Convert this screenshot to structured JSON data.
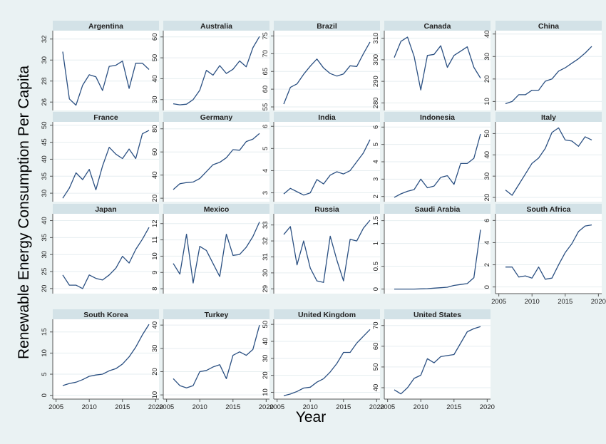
{
  "figure": {
    "ylabel": "Renewable Energy Consumption Per Capita",
    "xlabel": "Year"
  },
  "chart_data": [
    {
      "type": "line",
      "title": "Argentina",
      "x": [
        2006,
        2007,
        2008,
        2009,
        2010,
        2011,
        2012,
        2013,
        2014,
        2015,
        2016,
        2017,
        2018,
        2019
      ],
      "values": [
        30.8,
        26.3,
        25.7,
        27.6,
        28.6,
        28.4,
        27.1,
        29.4,
        29.5,
        29.9,
        27.3,
        29.7,
        29.7,
        29.1
      ],
      "yticks": [
        26,
        28,
        30,
        32
      ],
      "ylim": [
        25.2,
        32.8
      ],
      "xticks": [
        2005,
        2010,
        2015,
        2020
      ],
      "xlim": [
        2004.5,
        2020.5
      ],
      "xlabels": false,
      "ylabels": true
    },
    {
      "type": "line",
      "title": "Australia",
      "x": [
        2006,
        2007,
        2008,
        2009,
        2010,
        2011,
        2012,
        2013,
        2014,
        2015,
        2016,
        2017,
        2018,
        2019
      ],
      "values": [
        28,
        27.5,
        27.8,
        30,
        34.5,
        44,
        41.7,
        46.3,
        42.5,
        44.5,
        48.5,
        45.7,
        54.8,
        60.2
      ],
      "yticks": [
        30,
        40,
        50,
        60
      ],
      "ylim": [
        24.8,
        63
      ],
      "xticks": [
        2005,
        2010,
        2015,
        2020
      ],
      "xlim": [
        2004.5,
        2020.5
      ],
      "xlabels": false,
      "ylabels": true
    },
    {
      "type": "line",
      "title": "Brazil",
      "x": [
        2006,
        2007,
        2008,
        2009,
        2010,
        2011,
        2012,
        2013,
        2014,
        2015,
        2016,
        2017,
        2018,
        2019
      ],
      "values": [
        55.8,
        60.5,
        61.5,
        64.2,
        66.5,
        68.5,
        66,
        64.4,
        63.7,
        64.3,
        66.6,
        66.4,
        70,
        73.3
      ],
      "yticks": [
        55,
        60,
        65,
        70,
        75
      ],
      "ylim": [
        54,
        76.5
      ],
      "xticks": [
        2005,
        2010,
        2015,
        2020
      ],
      "xlim": [
        2004.5,
        2020.5
      ],
      "xlabels": false,
      "ylabels": true
    },
    {
      "type": "line",
      "title": "Canada",
      "x": [
        2006,
        2007,
        2008,
        2009,
        2010,
        2011,
        2012,
        2013,
        2014,
        2015,
        2016,
        2017,
        2018,
        2019
      ],
      "values": [
        301,
        308.5,
        310.5,
        301.5,
        286,
        302,
        302.5,
        306.5,
        296.5,
        302,
        304,
        306,
        296.5,
        291.5
      ],
      "yticks": [
        280,
        290,
        300,
        310
      ],
      "ylim": [
        276.5,
        313.5
      ],
      "xticks": [
        2005,
        2010,
        2015,
        2020
      ],
      "xlim": [
        2004.5,
        2020.5
      ],
      "xlabels": false,
      "ylabels": true
    },
    {
      "type": "line",
      "title": "China",
      "x": [
        2006,
        2007,
        2008,
        2009,
        2010,
        2011,
        2012,
        2013,
        2014,
        2015,
        2016,
        2017,
        2018,
        2019
      ],
      "values": [
        9,
        10,
        13,
        13,
        15,
        15,
        19,
        20,
        23.5,
        25,
        27,
        29,
        31.5,
        34.5
      ],
      "yticks": [
        10,
        20,
        30,
        40
      ],
      "ylim": [
        6,
        41.5
      ],
      "xticks": [
        2005,
        2010,
        2015,
        2020
      ],
      "xlim": [
        2004.5,
        2020.5
      ],
      "xlabels": false,
      "ylabels": true
    },
    {
      "type": "line",
      "title": "France",
      "x": [
        2006,
        2007,
        2008,
        2009,
        2010,
        2011,
        2012,
        2013,
        2014,
        2015,
        2016,
        2017,
        2018,
        2019
      ],
      "values": [
        28.5,
        31.5,
        36,
        34,
        37,
        31,
        38,
        43.5,
        41.5,
        40.2,
        43,
        40.2,
        47.5,
        48.5
      ],
      "yticks": [
        30,
        35,
        40,
        45,
        50
      ],
      "ylim": [
        27.5,
        51
      ],
      "xticks": [
        2005,
        2010,
        2015,
        2020
      ],
      "xlim": [
        2004.5,
        2020.5
      ],
      "xlabels": false,
      "ylabels": true
    },
    {
      "type": "line",
      "title": "Germany",
      "x": [
        2006,
        2007,
        2008,
        2009,
        2010,
        2011,
        2012,
        2013,
        2014,
        2015,
        2016,
        2017,
        2018,
        2019
      ],
      "values": [
        27.5,
        32.5,
        33.5,
        34,
        37,
        43,
        49,
        51,
        55,
        62,
        61.5,
        69,
        71,
        76
      ],
      "yticks": [
        20,
        40,
        60,
        80
      ],
      "ylim": [
        17,
        86
      ],
      "xticks": [
        2005,
        2010,
        2015,
        2020
      ],
      "xlim": [
        2004.5,
        2020.5
      ],
      "xlabels": false,
      "ylabels": true
    },
    {
      "type": "line",
      "title": "India",
      "x": [
        2006,
        2007,
        2008,
        2009,
        2010,
        2011,
        2012,
        2013,
        2014,
        2015,
        2016,
        2017,
        2018,
        2019
      ],
      "values": [
        2.95,
        3.2,
        3.05,
        2.9,
        3.0,
        3.6,
        3.4,
        3.8,
        3.95,
        3.85,
        4.0,
        4.4,
        4.8,
        5.4
      ],
      "yticks": [
        3,
        4,
        5,
        6
      ],
      "ylim": [
        2.6,
        6.2
      ],
      "xticks": [
        2005,
        2010,
        2015,
        2020
      ],
      "xlim": [
        2004.5,
        2020.5
      ],
      "xlabels": false,
      "ylabels": true
    },
    {
      "type": "line",
      "title": "Indonesia",
      "x": [
        2006,
        2007,
        2008,
        2009,
        2010,
        2011,
        2012,
        2013,
        2014,
        2015,
        2016,
        2017,
        2018,
        2019
      ],
      "values": [
        1.95,
        2.15,
        2.3,
        2.4,
        3.0,
        2.5,
        2.6,
        3.1,
        3.2,
        2.7,
        3.9,
        3.9,
        4.2,
        5.6
      ],
      "yticks": [
        2,
        3,
        4,
        5,
        6
      ],
      "ylim": [
        1.7,
        6.3
      ],
      "xticks": [
        2005,
        2010,
        2015,
        2020
      ],
      "xlim": [
        2004.5,
        2020.5
      ],
      "xlabels": false,
      "ylabels": true
    },
    {
      "type": "line",
      "title": "Italy",
      "x": [
        2006,
        2007,
        2008,
        2009,
        2010,
        2011,
        2012,
        2013,
        2014,
        2015,
        2016,
        2017,
        2018,
        2019
      ],
      "values": [
        23.5,
        21,
        26,
        31,
        36,
        38.5,
        43,
        50.5,
        52.7,
        47,
        46.5,
        44,
        48.5,
        47
      ],
      "yticks": [
        20,
        30,
        40,
        50
      ],
      "ylim": [
        18,
        55.5
      ],
      "xticks": [
        2005,
        2010,
        2015,
        2020
      ],
      "xlim": [
        2004.5,
        2020.5
      ],
      "xlabels": false,
      "ylabels": true
    },
    {
      "type": "line",
      "title": "Japan",
      "x": [
        2006,
        2007,
        2008,
        2009,
        2010,
        2011,
        2012,
        2013,
        2014,
        2015,
        2016,
        2017,
        2018,
        2019
      ],
      "values": [
        24,
        21,
        21,
        20,
        24,
        23,
        22.5,
        24,
        26,
        29.5,
        27.5,
        31.5,
        34.5,
        38
      ],
      "yticks": [
        20,
        25,
        30,
        35,
        40
      ],
      "ylim": [
        18.5,
        42
      ],
      "xticks": [
        2005,
        2010,
        2015,
        2020
      ],
      "xlim": [
        2004.5,
        2020.5
      ],
      "xlabels": false,
      "ylabels": true
    },
    {
      "type": "line",
      "title": "Mexico",
      "x": [
        2006,
        2007,
        2008,
        2009,
        2010,
        2011,
        2012,
        2013,
        2014,
        2015,
        2016,
        2017,
        2018,
        2019
      ],
      "values": [
        9.55,
        8.9,
        11.35,
        8.35,
        10.6,
        10.35,
        9.55,
        8.75,
        11.35,
        10.05,
        10.1,
        10.55,
        11.2,
        12.1
      ],
      "yticks": [
        8,
        9,
        10,
        11,
        12
      ],
      "ylim": [
        7.7,
        12.6
      ],
      "xticks": [
        2005,
        2010,
        2015,
        2020
      ],
      "xlim": [
        2004.5,
        2020.5
      ],
      "xlabels": false,
      "ylabels": true
    },
    {
      "type": "line",
      "title": "Russia",
      "x": [
        2006,
        2007,
        2008,
        2009,
        2010,
        2011,
        2012,
        2013,
        2014,
        2015,
        2016,
        2017,
        2018,
        2019
      ],
      "values": [
        32.4,
        32.9,
        30.5,
        32,
        30.3,
        29.5,
        29.4,
        32.3,
        30.8,
        29.5,
        32.1,
        32,
        32.8,
        33.3
      ],
      "yticks": [
        29,
        30,
        31,
        32,
        33
      ],
      "ylim": [
        28.7,
        33.7
      ],
      "xticks": [
        2005,
        2010,
        2015,
        2020
      ],
      "xlim": [
        2004.5,
        2020.5
      ],
      "xlabels": false,
      "ylabels": true
    },
    {
      "type": "line",
      "title": "Saudi Arabia",
      "x": [
        2006,
        2007,
        2008,
        2009,
        2010,
        2011,
        2012,
        2013,
        2014,
        2015,
        2016,
        2017,
        2018,
        2019
      ],
      "values": [
        0.0,
        0.0,
        0.0,
        0.0,
        0.005,
        0.01,
        0.02,
        0.03,
        0.04,
        0.08,
        0.1,
        0.12,
        0.25,
        1.3
      ],
      "yticks": [
        0,
        0.5,
        1,
        1.5
      ],
      "ylim": [
        -0.1,
        1.65
      ],
      "xticks": [
        2005,
        2010,
        2015,
        2020
      ],
      "xlim": [
        2004.5,
        2020.5
      ],
      "xlabels": false,
      "ylabels": true
    },
    {
      "type": "line",
      "title": "South Africa",
      "x": [
        2006,
        2007,
        2008,
        2009,
        2010,
        2011,
        2012,
        2013,
        2014,
        2015,
        2016,
        2017,
        2018,
        2019
      ],
      "values": [
        1.8,
        1.8,
        0.9,
        1.0,
        0.8,
        1.8,
        0.7,
        0.8,
        2.0,
        3.1,
        3.9,
        5.0,
        5.5,
        5.6
      ],
      "yticks": [
        0,
        2,
        4,
        6
      ],
      "ylim": [
        -0.6,
        6.6
      ],
      "xticks": [
        2005,
        2010,
        2015,
        2020
      ],
      "xlim": [
        2004.5,
        2020.5
      ],
      "xlabels": true,
      "ylabels": true
    },
    {
      "type": "line",
      "title": "South Korea",
      "x": [
        2006,
        2007,
        2008,
        2009,
        2010,
        2011,
        2012,
        2013,
        2014,
        2015,
        2016,
        2017,
        2018,
        2019
      ],
      "values": [
        2.3,
        2.8,
        3.1,
        3.7,
        4.5,
        4.8,
        5.0,
        5.8,
        6.3,
        7.4,
        9.1,
        11.4,
        14.3,
        16.8
      ],
      "yticks": [
        0,
        5,
        10,
        15
      ],
      "ylim": [
        -0.9,
        18
      ],
      "xticks": [
        2005,
        2010,
        2015,
        2020
      ],
      "xlim": [
        2004.5,
        2020.5
      ],
      "xlabels": true,
      "ylabels": true
    },
    {
      "type": "line",
      "title": "Turkey",
      "x": [
        2006,
        2007,
        2008,
        2009,
        2010,
        2011,
        2012,
        2013,
        2014,
        2015,
        2016,
        2017,
        2018,
        2019
      ],
      "values": [
        17,
        14,
        13,
        14,
        20,
        20.5,
        22,
        23,
        17,
        27,
        28.5,
        27,
        29.5,
        40
      ],
      "yticks": [
        10,
        20,
        30,
        40
      ],
      "ylim": [
        8.2,
        42.5
      ],
      "xticks": [
        2005,
        2010,
        2015,
        2020
      ],
      "xlim": [
        2004.5,
        2020.5
      ],
      "xlabels": true,
      "ylabels": true
    },
    {
      "type": "line",
      "title": "United Kingdom",
      "x": [
        2006,
        2007,
        2008,
        2009,
        2010,
        2011,
        2012,
        2013,
        2014,
        2015,
        2016,
        2017,
        2018,
        2019
      ],
      "values": [
        8,
        9,
        10.5,
        12.5,
        13,
        16,
        18,
        22,
        27,
        33.5,
        33.5,
        39,
        43,
        47
      ],
      "yticks": [
        10,
        20,
        30,
        40,
        50
      ],
      "ylim": [
        6,
        53
      ],
      "xticks": [
        2005,
        2010,
        2015,
        2020
      ],
      "xlim": [
        2004.5,
        2020.5
      ],
      "xlabels": true,
      "ylabels": true
    },
    {
      "type": "line",
      "title": "United States",
      "x": [
        2006,
        2007,
        2008,
        2009,
        2010,
        2011,
        2012,
        2013,
        2014,
        2015,
        2016,
        2017,
        2018,
        2019
      ],
      "values": [
        39,
        37,
        40,
        44.5,
        46,
        54,
        52,
        55,
        55.5,
        56,
        61.5,
        67,
        68.5,
        69.5
      ],
      "yticks": [
        40,
        50,
        60,
        70
      ],
      "ylim": [
        34.5,
        73
      ],
      "xticks": [
        2005,
        2010,
        2015,
        2020
      ],
      "xlim": [
        2004.5,
        2020.5
      ],
      "xlabels": true,
      "ylabels": true
    }
  ]
}
